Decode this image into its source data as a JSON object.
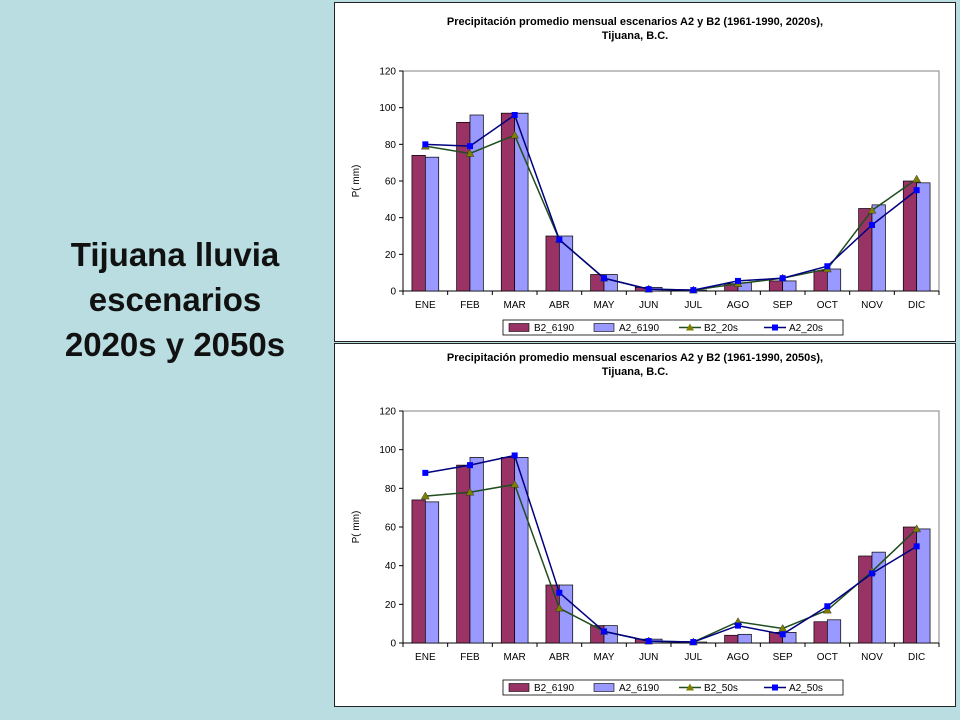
{
  "slide": {
    "title_lines": [
      "Tijuana lluvia",
      "escenarios",
      "2020s y 2050s"
    ]
  },
  "colors": {
    "background": "#b9dde0",
    "B2_6190": "#993366",
    "A2_6190": "#9999ff",
    "B2_line": "#1f4e1f",
    "B2_marker": "#808000",
    "A2_line": "#000080",
    "A2_marker": "#0000ff"
  },
  "chart_data": [
    {
      "type": "bar",
      "title": [
        "Precipitación promedio mensual escenarios A2 y B2 (1961-1990, 2020s),",
        "Tijuana, B.C."
      ],
      "ylabel": "P( mm)",
      "xlabel": "",
      "ylim": [
        0,
        120
      ],
      "yticks": [
        0,
        20,
        40,
        60,
        80,
        100,
        120
      ],
      "grid": false,
      "legend": "bottom",
      "categories": [
        "ENE",
        "FEB",
        "MAR",
        "ABR",
        "MAY",
        "JUN",
        "JUL",
        "AGO",
        "SEP",
        "OCT",
        "NOV",
        "DIC"
      ],
      "series": [
        {
          "name": "B2_6190",
          "kind": "bar",
          "values": [
            74,
            92,
            97,
            30,
            9,
            2,
            0.5,
            4,
            5.5,
            11,
            45,
            60
          ]
        },
        {
          "name": "A2_6190",
          "kind": "bar",
          "values": [
            73,
            96,
            97,
            30,
            9,
            2,
            0.5,
            4.5,
            5.5,
            12,
            47,
            59
          ]
        },
        {
          "name": "B2_20s",
          "kind": "line",
          "marker": "triangle",
          "values": [
            79,
            75,
            85,
            28,
            7,
            1,
            0.5,
            4,
            7,
            12,
            44,
            61
          ]
        },
        {
          "name": "A2_20s",
          "kind": "line",
          "marker": "square",
          "values": [
            80,
            79,
            96,
            28,
            7,
            1,
            0.5,
            5.5,
            7,
            13.5,
            36,
            55
          ]
        }
      ]
    },
    {
      "type": "bar",
      "title": [
        "Precipitación promedio mensual escenarios A2 y B2 (1961-1990, 2050s),",
        "Tijuana, B.C."
      ],
      "ylabel": "P( mm)",
      "xlabel": "",
      "ylim": [
        0,
        120
      ],
      "yticks": [
        0,
        20,
        40,
        60,
        80,
        100,
        120
      ],
      "grid": false,
      "legend": "bottom",
      "categories": [
        "ENE",
        "FEB",
        "MAR",
        "ABR",
        "MAY",
        "JUN",
        "JUL",
        "AGO",
        "SEP",
        "OCT",
        "NOV",
        "DIC"
      ],
      "series": [
        {
          "name": "B2_6190",
          "kind": "bar",
          "values": [
            74,
            92,
            96,
            30,
            9,
            2,
            0.5,
            4,
            5.5,
            11,
            45,
            60
          ]
        },
        {
          "name": "A2_6190",
          "kind": "bar",
          "values": [
            73,
            96,
            96,
            30,
            9,
            2,
            0.5,
            4.5,
            5.5,
            12,
            47,
            59
          ]
        },
        {
          "name": "B2_50s",
          "kind": "line",
          "marker": "triangle",
          "values": [
            76,
            78,
            82,
            18,
            6,
            1,
            0.5,
            11,
            7.5,
            17,
            37,
            59
          ]
        },
        {
          "name": "A2_50s",
          "kind": "line",
          "marker": "square",
          "values": [
            88,
            92,
            97,
            26,
            6,
            1,
            0.5,
            9,
            4.5,
            19,
            36,
            50
          ]
        }
      ]
    }
  ]
}
